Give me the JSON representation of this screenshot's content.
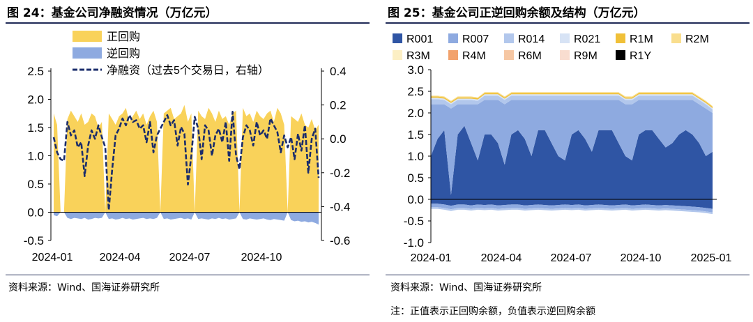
{
  "left": {
    "title": "图 24：基金公司净融资情况（万亿元）",
    "source": "资料来源：Wind、国海证券研究所"
  },
  "right": {
    "title": "图 25：基金公司正逆回购余额及结构（万亿元）",
    "source": "资料来源：Wind、国海证券研究所",
    "note": "注：正值表示正回购余额，负值表示逆回购余额"
  },
  "colors": {
    "zhenghuigou": "#F9D25A",
    "nihuigou": "#8EAAE0",
    "net": "#1A2C6B",
    "R001": "#2F55A4",
    "R007": "#8EAAE0",
    "R014": "#B2C7EC",
    "R021": "#D7E3F5",
    "R1M": "#F0C038",
    "R2M": "#F9DE8E",
    "R3M": "#FCEFC4",
    "R4M": "#F2A26C",
    "R6M": "#F6C7A3",
    "R9M": "#F9DDD0",
    "R1Y": "#000000",
    "title_rule": "#1f2a56"
  },
  "chart_data": [
    {
      "type": "area",
      "x_ticks": [
        "2024-01",
        "2024-04",
        "2024-07",
        "2024-10"
      ],
      "ylim": [
        -0.5,
        2.5
      ],
      "y_ticks": [
        "2.5",
        "2.0",
        "1.5",
        "1.0",
        "0.5",
        "0.0",
        "-0.5"
      ],
      "y2lim": [
        -0.6,
        0.4
      ],
      "y2_ticks": [
        "0.4",
        "0.2",
        "0.0",
        "-0.2",
        "-0.4",
        "-0.6"
      ],
      "legend_position": "top-center",
      "series": [
        {
          "name": "正回购",
          "style": "area",
          "axis": "left",
          "values": [
            1.75,
            1.55,
            0.0,
            0.0,
            1.65,
            1.8,
            1.7,
            1.6,
            1.75,
            1.55,
            1.6,
            1.75,
            1.7,
            1.5,
            1.6,
            0.0,
            1.75,
            1.65,
            1.55,
            1.7,
            1.75,
            1.85,
            1.6,
            1.7,
            1.8,
            1.65,
            1.75,
            1.55,
            1.7,
            1.8,
            1.6,
            0.0,
            1.75,
            1.8,
            1.85,
            1.65,
            1.7,
            1.75,
            1.9,
            1.6,
            1.75,
            0.0,
            1.8,
            1.7,
            1.65,
            1.85,
            1.75,
            1.6,
            1.8,
            1.65,
            1.7,
            1.55,
            1.75,
            1.8,
            0.0,
            1.85,
            1.7,
            1.75,
            1.6,
            1.8,
            1.7,
            1.65,
            1.75,
            1.8,
            1.6,
            1.85,
            1.75,
            1.55,
            0.0,
            1.7,
            1.65,
            1.6,
            1.75,
            1.55,
            1.5,
            1.65,
            1.45,
            1.55
          ]
        },
        {
          "name": "逆回购",
          "style": "area",
          "axis": "left",
          "values": [
            -0.05,
            -0.07,
            0.0,
            0.0,
            -0.1,
            -0.12,
            -0.1,
            -0.11,
            -0.12,
            -0.1,
            -0.13,
            -0.12,
            -0.1,
            -0.11,
            -0.1,
            0.0,
            -0.12,
            -0.11,
            -0.13,
            -0.12,
            -0.1,
            -0.12,
            -0.11,
            -0.13,
            -0.12,
            -0.11,
            -0.1,
            -0.12,
            -0.11,
            -0.12,
            -0.1,
            0.0,
            -0.12,
            -0.11,
            -0.13,
            -0.12,
            -0.11,
            -0.1,
            -0.12,
            -0.11,
            -0.13,
            0.0,
            -0.12,
            -0.11,
            -0.12,
            -0.13,
            -0.11,
            -0.12,
            -0.1,
            -0.12,
            -0.11,
            -0.13,
            -0.12,
            -0.11,
            0.0,
            -0.12,
            -0.13,
            -0.11,
            -0.12,
            -0.13,
            -0.12,
            -0.11,
            -0.13,
            -0.14,
            -0.12,
            -0.13,
            -0.14,
            -0.15,
            0.0,
            -0.14,
            -0.16,
            -0.15,
            -0.17,
            -0.16,
            -0.18,
            -0.17,
            -0.19,
            -0.22
          ]
        },
        {
          "name": "净融资（过去5个交易日，右轴）",
          "style": "dashed-line",
          "axis": "right",
          "values": [
            0.01,
            -0.08,
            -0.12,
            -0.13,
            0.1,
            0.02,
            0.05,
            -0.05,
            -0.02,
            -0.22,
            -0.04,
            0.05,
            0.0,
            0.08,
            0.01,
            -0.05,
            -0.42,
            -0.18,
            0.02,
            0.06,
            0.12,
            0.08,
            0.14,
            0.1,
            0.11,
            0.06,
            0.08,
            -0.02,
            0.1,
            -0.08,
            0.02,
            0.06,
            0.1,
            0.14,
            0.08,
            0.11,
            -0.04,
            0.07,
            0.03,
            -0.27,
            -0.1,
            0.13,
            0.06,
            -0.12,
            0.08,
            0.05,
            -0.1,
            0.02,
            0.06,
            -0.02,
            0.1,
            -0.13,
            0.16,
            -0.1,
            -0.18,
            0.01,
            0.08,
            0.05,
            -0.04,
            0.1,
            0.02,
            0.05,
            0.0,
            0.12,
            0.08,
            0.04,
            -0.08,
            0.02,
            -0.05,
            0.01,
            -0.12,
            0.03,
            -0.07,
            0.08,
            -0.2,
            0.0,
            0.06,
            -0.23
          ]
        }
      ]
    },
    {
      "type": "area",
      "stacked": true,
      "x_ticks": [
        "2024-01",
        "2024-04",
        "2024-07",
        "2024-10",
        "2025-01"
      ],
      "ylim": [
        -1.0,
        3.0
      ],
      "y_ticks": [
        "3.0",
        "2.5",
        "2.0",
        "1.5",
        "1.0",
        "0.5",
        "0.0",
        "-0.5",
        "-1.0"
      ],
      "legend_position": "top",
      "legend": [
        "R001",
        "R007",
        "R014",
        "R021",
        "R1M",
        "R2M",
        "R3M",
        "R4M",
        "R6M",
        "R9M",
        "R1Y"
      ],
      "series": [
        {
          "name": "R001",
          "values": [
            1.0,
            1.4,
            1.6,
            0.1,
            1.5,
            1.7,
            1.3,
            0.9,
            1.5,
            1.5,
            1.3,
            0.8,
            1.5,
            1.6,
            1.4,
            1.0,
            1.6,
            1.6,
            1.3,
            1.0,
            0.9,
            1.5,
            1.6,
            1.4,
            1.1,
            1.6,
            1.6,
            1.6,
            1.3,
            1.0,
            0.9,
            1.5,
            1.6,
            1.6,
            1.4,
            1.2,
            1.3,
            1.5,
            1.6,
            1.5,
            1.3,
            1.0,
            1.1
          ]
        },
        {
          "name": "R007",
          "values": [
            1.2,
            0.8,
            0.6,
            2.0,
            0.7,
            0.5,
            0.9,
            1.3,
            0.8,
            0.8,
            1.0,
            1.4,
            0.8,
            0.7,
            0.9,
            1.3,
            0.7,
            0.7,
            1.0,
            1.3,
            1.4,
            0.8,
            0.7,
            0.9,
            1.2,
            0.7,
            0.7,
            0.7,
            1.0,
            1.2,
            1.3,
            0.8,
            0.7,
            0.7,
            0.9,
            1.1,
            1.0,
            0.8,
            0.7,
            0.8,
            0.9,
            1.1,
            0.9
          ]
        },
        {
          "name": "R014",
          "values": [
            0.12,
            0.12,
            0.1,
            0.1,
            0.1,
            0.1,
            0.1,
            0.08,
            0.1,
            0.1,
            0.1,
            0.1,
            0.1,
            0.1,
            0.1,
            0.1,
            0.1,
            0.1,
            0.1,
            0.1,
            0.1,
            0.1,
            0.1,
            0.1,
            0.1,
            0.1,
            0.1,
            0.1,
            0.1,
            0.1,
            0.1,
            0.1,
            0.1,
            0.1,
            0.1,
            0.1,
            0.1,
            0.1,
            0.1,
            0.1,
            0.1,
            0.1,
            0.08
          ]
        },
        {
          "name": "R021",
          "values": [
            0.03,
            0.03,
            0.03,
            0.03,
            0.03,
            0.03,
            0.03,
            0.03,
            0.03,
            0.03,
            0.03,
            0.03,
            0.03,
            0.03,
            0.03,
            0.03,
            0.03,
            0.03,
            0.03,
            0.03,
            0.03,
            0.03,
            0.03,
            0.03,
            0.03,
            0.03,
            0.03,
            0.03,
            0.03,
            0.03,
            0.03,
            0.03,
            0.03,
            0.03,
            0.03,
            0.03,
            0.03,
            0.03,
            0.03,
            0.03,
            0.03,
            0.03,
            0.03
          ]
        },
        {
          "name": "R1M",
          "values": [
            0.03,
            0.03,
            0.03,
            0.03,
            0.03,
            0.03,
            0.03,
            0.03,
            0.03,
            0.03,
            0.03,
            0.03,
            0.03,
            0.03,
            0.03,
            0.03,
            0.03,
            0.03,
            0.03,
            0.03,
            0.03,
            0.03,
            0.03,
            0.03,
            0.03,
            0.03,
            0.03,
            0.03,
            0.03,
            0.03,
            0.03,
            0.03,
            0.03,
            0.03,
            0.03,
            0.03,
            0.03,
            0.03,
            0.03,
            0.03,
            0.03,
            0.03,
            0.03
          ]
        },
        {
          "name": "R2M",
          "values": [
            0.02,
            0.02,
            0.02,
            0.02,
            0.02,
            0.02,
            0.02,
            0.02,
            0.02,
            0.02,
            0.02,
            0.02,
            0.02,
            0.02,
            0.02,
            0.02,
            0.02,
            0.02,
            0.02,
            0.02,
            0.02,
            0.02,
            0.02,
            0.02,
            0.02,
            0.02,
            0.02,
            0.02,
            0.02,
            0.02,
            0.02,
            0.02,
            0.02,
            0.02,
            0.02,
            0.02,
            0.02,
            0.02,
            0.02,
            0.02,
            0.02,
            0.02,
            0.02
          ]
        }
      ],
      "negative_series": [
        {
          "name": "R001",
          "values": [
            -0.1,
            -0.1,
            -0.12,
            -0.15,
            -0.12,
            -0.12,
            -0.14,
            -0.12,
            -0.13,
            -0.12,
            -0.14,
            -0.13,
            -0.12,
            -0.12,
            -0.14,
            -0.13,
            -0.12,
            -0.13,
            -0.14,
            -0.13,
            -0.12,
            -0.13,
            -0.12,
            -0.14,
            -0.13,
            -0.12,
            -0.13,
            -0.14,
            -0.13,
            -0.12,
            -0.14,
            -0.13,
            -0.12,
            -0.13,
            -0.14,
            -0.13,
            -0.14,
            -0.15,
            -0.16,
            -0.17,
            -0.18,
            -0.2,
            -0.22
          ]
        },
        {
          "name": "R007",
          "values": [
            -0.08,
            -0.08,
            -0.08,
            -0.08,
            -0.08,
            -0.08,
            -0.08,
            -0.08,
            -0.08,
            -0.08,
            -0.08,
            -0.08,
            -0.08,
            -0.08,
            -0.08,
            -0.08,
            -0.08,
            -0.08,
            -0.08,
            -0.08,
            -0.08,
            -0.08,
            -0.08,
            -0.08,
            -0.08,
            -0.08,
            -0.08,
            -0.08,
            -0.08,
            -0.08,
            -0.08,
            -0.08,
            -0.08,
            -0.08,
            -0.08,
            -0.08,
            -0.08,
            -0.08,
            -0.08,
            -0.08,
            -0.08,
            -0.08,
            -0.08
          ]
        },
        {
          "name": "R014",
          "values": [
            -0.04,
            -0.04,
            -0.04,
            -0.04,
            -0.04,
            -0.04,
            -0.04,
            -0.04,
            -0.04,
            -0.04,
            -0.04,
            -0.04,
            -0.04,
            -0.04,
            -0.04,
            -0.04,
            -0.04,
            -0.04,
            -0.04,
            -0.04,
            -0.04,
            -0.04,
            -0.04,
            -0.04,
            -0.04,
            -0.04,
            -0.04,
            -0.04,
            -0.04,
            -0.04,
            -0.04,
            -0.04,
            -0.04,
            -0.04,
            -0.04,
            -0.04,
            -0.04,
            -0.04,
            -0.04,
            -0.04,
            -0.04,
            -0.04,
            -0.04
          ]
        }
      ]
    }
  ]
}
